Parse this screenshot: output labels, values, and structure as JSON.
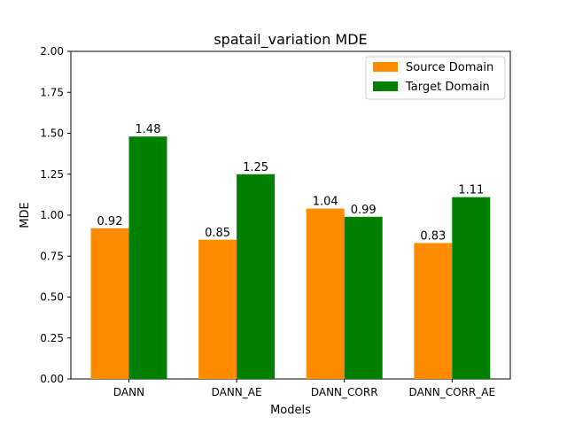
{
  "chart_data": {
    "type": "bar",
    "title": "spatail_variation MDE",
    "xlabel": "Models",
    "ylabel": "MDE",
    "categories": [
      "DANN",
      "DANN_AE",
      "DANN_CORR",
      "DANN_CORR_AE"
    ],
    "series": [
      {
        "name": "Source Domain",
        "values": [
          0.92,
          0.85,
          1.04,
          0.83
        ],
        "labels": [
          "0.92",
          "0.85",
          "1.04",
          "0.83"
        ],
        "color": "#ff8c00"
      },
      {
        "name": "Target Domain",
        "values": [
          1.48,
          1.25,
          0.99,
          1.11
        ],
        "labels": [
          "1.48",
          "1.25",
          "0.99",
          "1.11"
        ],
        "color": "#008000"
      }
    ],
    "ylim": [
      0,
      2.0
    ],
    "yticks": [
      "0.00",
      "0.25",
      "0.50",
      "0.75",
      "1.00",
      "1.25",
      "1.50",
      "1.75",
      "2.00"
    ],
    "grid": false,
    "legend_position": "top-right"
  }
}
